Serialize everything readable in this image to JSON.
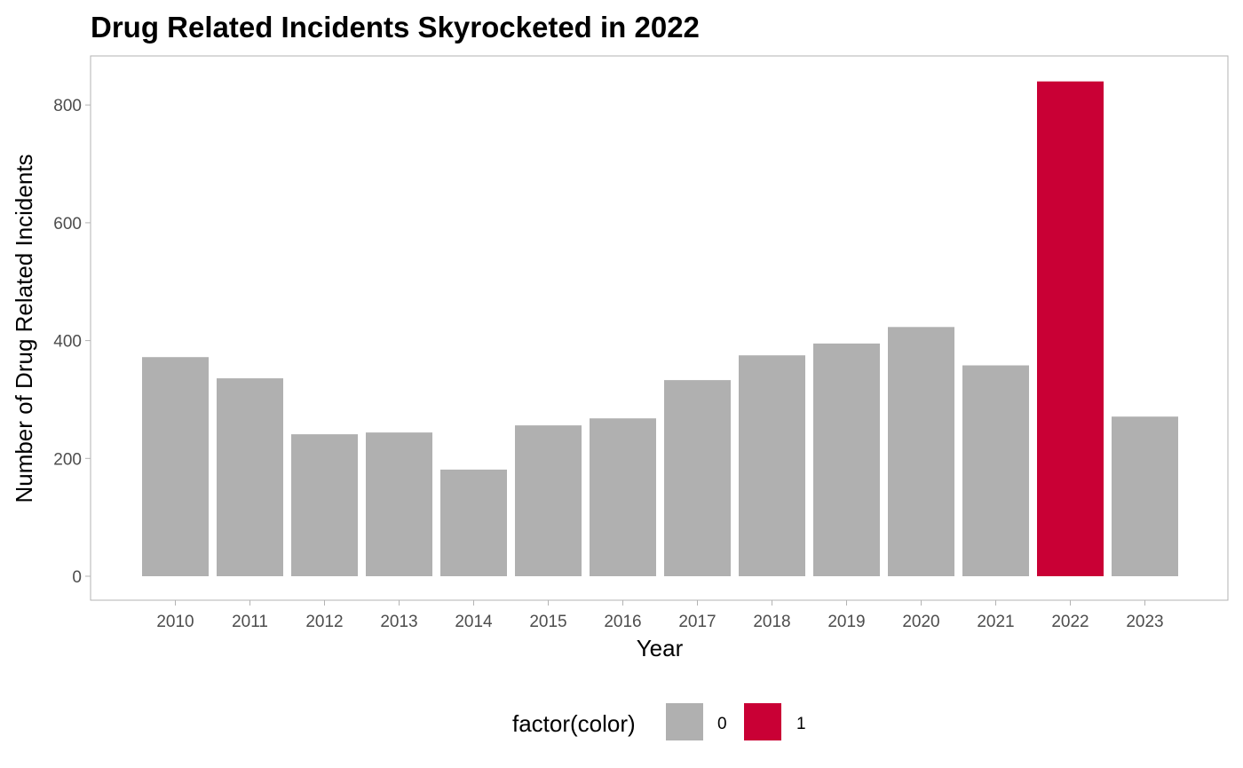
{
  "colors": {
    "group_0": "#b0b0b0",
    "group_1": "#c90035",
    "panel_border": "#b3b3b3",
    "tick": "#4d4d4d"
  },
  "chart_data": {
    "type": "bar",
    "title": "Drug Related Incidents Skyrocketed in 2022",
    "xlabel": "Year",
    "ylabel": "Number of Drug Related Incidents",
    "categories": [
      "2010",
      "2011",
      "2012",
      "2013",
      "2014",
      "2015",
      "2016",
      "2017",
      "2018",
      "2019",
      "2020",
      "2021",
      "2022",
      "2023"
    ],
    "values": [
      372,
      336,
      241,
      244,
      181,
      256,
      268,
      333,
      375,
      395,
      423,
      358,
      840,
      271
    ],
    "groups": [
      "0",
      "0",
      "0",
      "0",
      "0",
      "0",
      "0",
      "0",
      "0",
      "0",
      "0",
      "0",
      "1",
      "0"
    ],
    "ylim": [
      0,
      885
    ],
    "yticks": [
      0,
      200,
      400,
      600,
      800
    ],
    "grid": false,
    "legend": {
      "title": "factor(color)",
      "position": "bottom",
      "entries": [
        {
          "label": "0",
          "color": "#b0b0b0"
        },
        {
          "label": "1",
          "color": "#c90035"
        }
      ]
    }
  }
}
